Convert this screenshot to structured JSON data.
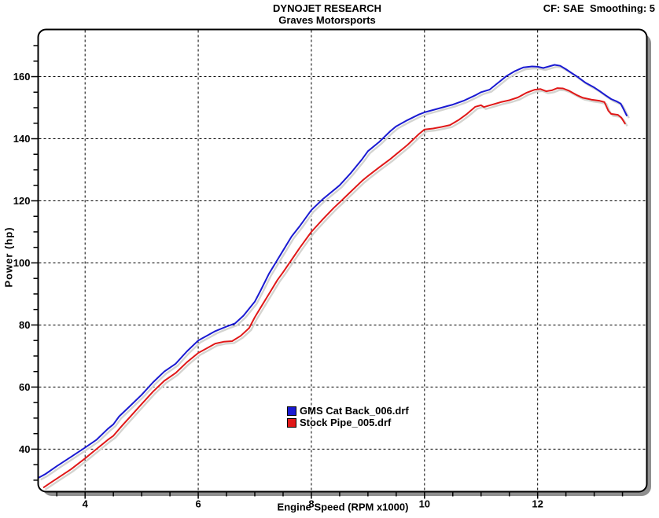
{
  "header": {
    "title": "DYNOJET RESEARCH",
    "subtitle": "Graves Motorsports",
    "correction": "CF: SAE  Smoothing: 5"
  },
  "axes": {
    "x_label": "Engine Speed (RPM x1000)",
    "y_label": "Power (hp)"
  },
  "legend": {
    "items": [
      {
        "label": "GMS Cat Back_006.drf",
        "color": "#1a1ad2"
      },
      {
        "label": "Stock Pipe_005.drf",
        "color": "#e01818"
      }
    ]
  },
  "colors": {
    "plot_border": "#000000",
    "plot_shadow": "#8f8f8f",
    "grid": "#000000",
    "curve_shadow": "#d4d4d0",
    "background": "#ffffff"
  },
  "chart_data": {
    "type": "line",
    "title": "DYNOJET RESEARCH / Graves Motorsports",
    "xlabel": "Engine Speed (RPM x1000)",
    "ylabel": "Power (hp)",
    "xlim": [
      3.17,
      13.93
    ],
    "ylim": [
      26.3,
      175.2
    ],
    "x_major_ticks": [
      4,
      6,
      8,
      10,
      12
    ],
    "x_minor_ticks_range": [
      3.5,
      13.5,
      0.5
    ],
    "y_major_ticks": [
      40,
      60,
      80,
      100,
      120,
      140,
      160
    ],
    "y_minor_ticks_range": [
      30,
      170,
      5
    ],
    "grid": "dashed lines at major ticks, both axes",
    "legend_position": "inside plot, lower center",
    "series": [
      {
        "name": "GMS Cat Back_006.drf",
        "color": "#1a1ad2",
        "points": [
          [
            3.18,
            30.8
          ],
          [
            3.3,
            32
          ],
          [
            3.5,
            34.5
          ],
          [
            3.75,
            37.5
          ],
          [
            4.0,
            40.5
          ],
          [
            4.2,
            43
          ],
          [
            4.4,
            46.5
          ],
          [
            4.5,
            48
          ],
          [
            4.6,
            50.5
          ],
          [
            4.8,
            54
          ],
          [
            5.0,
            57.5
          ],
          [
            5.2,
            61.5
          ],
          [
            5.4,
            65
          ],
          [
            5.6,
            67.5
          ],
          [
            5.8,
            71.5
          ],
          [
            6.0,
            75
          ],
          [
            6.15,
            76.5
          ],
          [
            6.3,
            78
          ],
          [
            6.5,
            79.5
          ],
          [
            6.65,
            80.5
          ],
          [
            6.8,
            83
          ],
          [
            7.0,
            87.5
          ],
          [
            7.1,
            91
          ],
          [
            7.25,
            96.5
          ],
          [
            7.4,
            101
          ],
          [
            7.5,
            104
          ],
          [
            7.65,
            108.5
          ],
          [
            7.8,
            112
          ],
          [
            8.0,
            117
          ],
          [
            8.2,
            120.5
          ],
          [
            8.4,
            123.5
          ],
          [
            8.5,
            125
          ],
          [
            8.7,
            129
          ],
          [
            8.9,
            133.5
          ],
          [
            9.0,
            136
          ],
          [
            9.2,
            139
          ],
          [
            9.4,
            142.5
          ],
          [
            9.5,
            144
          ],
          [
            9.7,
            146
          ],
          [
            9.9,
            147.8
          ],
          [
            10.0,
            148.5
          ],
          [
            10.2,
            149.5
          ],
          [
            10.4,
            150.5
          ],
          [
            10.5,
            151
          ],
          [
            10.7,
            152.3
          ],
          [
            10.9,
            154
          ],
          [
            11.0,
            155
          ],
          [
            11.15,
            155.8
          ],
          [
            11.3,
            158
          ],
          [
            11.45,
            160.2
          ],
          [
            11.6,
            161.8
          ],
          [
            11.75,
            163
          ],
          [
            11.9,
            163.3
          ],
          [
            12.0,
            163.2
          ],
          [
            12.1,
            162.8
          ],
          [
            12.2,
            163.3
          ],
          [
            12.3,
            163.8
          ],
          [
            12.4,
            163.5
          ],
          [
            12.5,
            162.4
          ],
          [
            12.6,
            161.2
          ],
          [
            12.7,
            160
          ],
          [
            12.85,
            158
          ],
          [
            13.0,
            156.5
          ],
          [
            13.1,
            155.3
          ],
          [
            13.2,
            154
          ],
          [
            13.3,
            152.8
          ],
          [
            13.4,
            152
          ],
          [
            13.47,
            151.3
          ],
          [
            13.52,
            149.5
          ],
          [
            13.58,
            147.3
          ]
        ]
      },
      {
        "name": "Stock Pipe_005.drf",
        "color": "#e01818",
        "points": [
          [
            3.26,
            27.6
          ],
          [
            3.4,
            29.3
          ],
          [
            3.5,
            30.5
          ],
          [
            3.75,
            33.5
          ],
          [
            4.0,
            37
          ],
          [
            4.2,
            40
          ],
          [
            4.4,
            43
          ],
          [
            4.5,
            44.3
          ],
          [
            4.65,
            47.5
          ],
          [
            4.8,
            50.5
          ],
          [
            5.0,
            54.5
          ],
          [
            5.2,
            58.5
          ],
          [
            5.4,
            62
          ],
          [
            5.6,
            64.5
          ],
          [
            5.8,
            68
          ],
          [
            6.0,
            71
          ],
          [
            6.15,
            72.5
          ],
          [
            6.3,
            74
          ],
          [
            6.45,
            74.6
          ],
          [
            6.6,
            74.8
          ],
          [
            6.75,
            76.5
          ],
          [
            6.9,
            79
          ],
          [
            7.0,
            82.5
          ],
          [
            7.1,
            85.5
          ],
          [
            7.25,
            90
          ],
          [
            7.4,
            94.5
          ],
          [
            7.5,
            97
          ],
          [
            7.65,
            101
          ],
          [
            7.8,
            105
          ],
          [
            8.0,
            110
          ],
          [
            8.2,
            114
          ],
          [
            8.4,
            117.8
          ],
          [
            8.5,
            119.5
          ],
          [
            8.7,
            123
          ],
          [
            8.9,
            126.5
          ],
          [
            9.0,
            128
          ],
          [
            9.2,
            130.8
          ],
          [
            9.4,
            133.5
          ],
          [
            9.5,
            135
          ],
          [
            9.7,
            138
          ],
          [
            9.9,
            141.5
          ],
          [
            10.0,
            143
          ],
          [
            10.15,
            143.3
          ],
          [
            10.3,
            143.8
          ],
          [
            10.45,
            144.4
          ],
          [
            10.6,
            146
          ],
          [
            10.75,
            148
          ],
          [
            10.9,
            150.3
          ],
          [
            11.0,
            150.8
          ],
          [
            11.05,
            150.2
          ],
          [
            11.2,
            151
          ],
          [
            11.35,
            151.8
          ],
          [
            11.5,
            152.4
          ],
          [
            11.65,
            153.3
          ],
          [
            11.8,
            154.8
          ],
          [
            11.95,
            155.8
          ],
          [
            12.05,
            156
          ],
          [
            12.15,
            155.3
          ],
          [
            12.25,
            155.6
          ],
          [
            12.35,
            156.3
          ],
          [
            12.45,
            156.2
          ],
          [
            12.55,
            155.5
          ],
          [
            12.7,
            154
          ],
          [
            12.8,
            153.2
          ],
          [
            12.95,
            152.6
          ],
          [
            13.1,
            152.2
          ],
          [
            13.18,
            151.8
          ],
          [
            13.25,
            149
          ],
          [
            13.3,
            148
          ],
          [
            13.42,
            147.7
          ],
          [
            13.48,
            146.8
          ],
          [
            13.55,
            144.7
          ]
        ]
      }
    ]
  }
}
